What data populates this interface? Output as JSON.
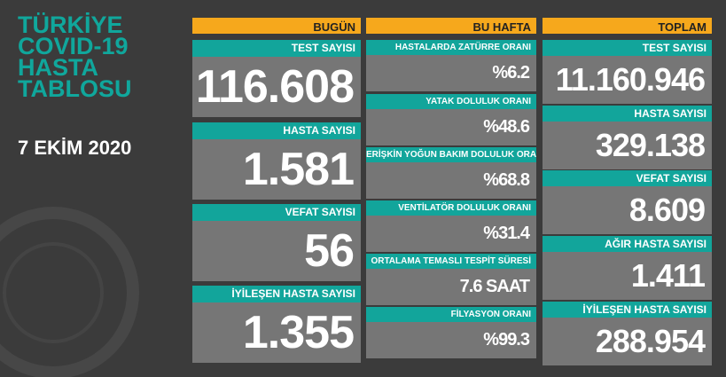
{
  "title_lines": [
    "TÜRKİYE",
    "COVID-19",
    "HASTA",
    "TABLOSU"
  ],
  "date": "7 EKİM 2020",
  "columns": [
    {
      "header": "BUGÜN",
      "items": [
        {
          "label": "TEST SAYISI",
          "value": "116.608"
        },
        {
          "label": "HASTA SAYISI",
          "value": "1.581"
        },
        {
          "label": "VEFAT SAYISI",
          "value": "56"
        },
        {
          "label": "İYİLEŞEN HASTA SAYISI",
          "value": "1.355"
        }
      ]
    },
    {
      "header": "BU HAFTA",
      "items": [
        {
          "label": "HASTALARDA ZATÜRRE ORANI",
          "value": "%6.2"
        },
        {
          "label": "YATAK DOLULUK ORANI",
          "value": "%48.6"
        },
        {
          "label": "ERİŞKİN YOĞUN BAKIM DOLULUK ORANI",
          "value": "%68.8"
        },
        {
          "label": "VENTİLATÖR DOLULUK ORANI",
          "value": "%31.4"
        },
        {
          "label": "ORTALAMA TEMASLI TESPİT SÜRESİ",
          "value": "7.6 SAAT"
        },
        {
          "label": "FİLYASYON ORANI",
          "value": "%99.3"
        }
      ]
    },
    {
      "header": "TOPLAM",
      "items": [
        {
          "label": "TEST SAYISI",
          "value": "11.160.946"
        },
        {
          "label": "HASTA SAYISI",
          "value": "329.138"
        },
        {
          "label": "VEFAT SAYISI",
          "value": "8.609"
        },
        {
          "label": "AĞIR HASTA SAYISI",
          "value": "1.411"
        },
        {
          "label": "İYİLEŞEN HASTA SAYISI",
          "value": "288.954"
        }
      ]
    }
  ]
}
